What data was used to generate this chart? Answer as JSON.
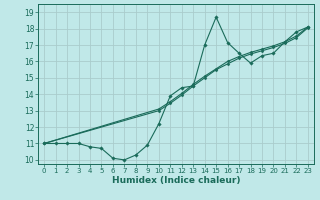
{
  "title": "",
  "xlabel": "Humidex (Indice chaleur)",
  "bg_color": "#c0e8e8",
  "grid_color": "#aacccc",
  "line_color": "#1a6b5a",
  "xlim": [
    -0.5,
    23.5
  ],
  "ylim": [
    9.75,
    19.5
  ],
  "xticks": [
    0,
    1,
    2,
    3,
    4,
    5,
    6,
    7,
    8,
    9,
    10,
    11,
    12,
    13,
    14,
    15,
    16,
    17,
    18,
    19,
    20,
    21,
    22,
    23
  ],
  "yticks": [
    10,
    11,
    12,
    13,
    14,
    15,
    16,
    17,
    18,
    19
  ],
  "line1_x": [
    0,
    1,
    2,
    3,
    4,
    5,
    6,
    7,
    8,
    9,
    10,
    11,
    12,
    13,
    14,
    15,
    16,
    17,
    18,
    19,
    20,
    21,
    22,
    23
  ],
  "line1_y": [
    11.0,
    11.0,
    11.0,
    11.0,
    10.8,
    10.7,
    10.1,
    10.0,
    10.3,
    10.9,
    12.2,
    13.9,
    14.4,
    14.5,
    17.0,
    18.7,
    17.15,
    16.5,
    15.9,
    16.35,
    16.5,
    17.2,
    17.8,
    18.1
  ],
  "line2_x": [
    0,
    10,
    11,
    12,
    13,
    14,
    15,
    16,
    17,
    18,
    19,
    20,
    21,
    22,
    23
  ],
  "line2_y": [
    11.0,
    13.1,
    13.55,
    14.05,
    14.6,
    15.1,
    15.55,
    16.0,
    16.3,
    16.55,
    16.75,
    16.95,
    17.2,
    17.55,
    18.1
  ],
  "line3_x": [
    0,
    10,
    11,
    12,
    13,
    14,
    15,
    16,
    17,
    18,
    19,
    20,
    21,
    22,
    23
  ],
  "line3_y": [
    11.0,
    13.0,
    13.45,
    13.95,
    14.5,
    15.0,
    15.5,
    15.85,
    16.2,
    16.45,
    16.65,
    16.85,
    17.1,
    17.45,
    18.05
  ]
}
